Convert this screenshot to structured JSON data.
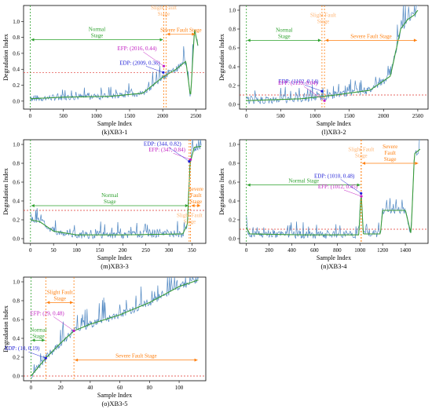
{
  "colors": {
    "axis": "#000000",
    "signal": "#4f87c2",
    "trend": "#3a9c3a",
    "normal": "#2ca02c",
    "fault": "#ff7f0e",
    "threshold": "#e0362e",
    "edp": "#1f1fd6",
    "efp": "#c21ec2"
  },
  "chart_data": [
    {
      "id": "k",
      "type": "line",
      "caption": "(k)XB3-1",
      "xlabel": "Sample Index",
      "ylabel": "Degradation Index",
      "xlim": [
        -100,
        2650
      ],
      "ylim": [
        -0.1,
        1.2
      ],
      "xticks": [
        0,
        500,
        1000,
        1500,
        2000,
        2500
      ],
      "yticks": [
        0.0,
        0.2,
        0.4,
        0.6,
        0.8,
        1.0
      ],
      "threshold": 0.36,
      "start_line": 0,
      "stage_lines": [
        2016,
        2050
      ],
      "stages": [
        {
          "label": [
            "Normal",
            "Stage"
          ],
          "from": 0,
          "to": 2016,
          "y": 0.77,
          "color": "normal"
        },
        {
          "label": [
            "Slight Fault",
            "Stage"
          ],
          "at": 2016,
          "y": 1.15,
          "color": "fault",
          "ghost": true
        },
        {
          "label": [
            "Severe Fault Stage"
          ],
          "from": 2050,
          "to": 2500,
          "y": 0.84,
          "color": "fault"
        }
      ],
      "annotations": [
        {
          "text": "EDP: (2009, 0.36)",
          "color": "edp",
          "x": 2009,
          "y": 0.36
        },
        {
          "text": "EFP: (2016, 0.44)",
          "color": "efp",
          "x": 2016,
          "y": 0.44
        }
      ],
      "signal_profile": [
        [
          0,
          0.03
        ],
        [
          500,
          0.05
        ],
        [
          1200,
          0.06
        ],
        [
          1700,
          0.1
        ],
        [
          2000,
          0.3
        ],
        [
          2200,
          0.4
        ],
        [
          2350,
          0.5
        ],
        [
          2420,
          0.05
        ],
        [
          2480,
          0.9
        ],
        [
          2530,
          0.7
        ]
      ]
    },
    {
      "id": "l",
      "type": "line",
      "caption": "(l)XB3-2",
      "xlabel": "Sample Index",
      "ylabel": "Degradation Index",
      "xlim": [
        -100,
        2650
      ],
      "ylim": [
        -0.05,
        1.05
      ],
      "xticks": [
        0,
        500,
        1000,
        1500,
        2000,
        2500
      ],
      "yticks": [
        0.0,
        0.2,
        0.4,
        0.6,
        0.8,
        1.0
      ],
      "threshold": 0.1,
      "start_line": 0,
      "stage_lines": [
        1102,
        1139
      ],
      "stages": [
        {
          "label": [
            "Normal",
            "Stage"
          ],
          "from": 0,
          "to": 1102,
          "y": 0.68,
          "color": "normal"
        },
        {
          "label": [
            "Slight Fault",
            "Stage"
          ],
          "at": 1120,
          "y": 0.93,
          "color": "fault",
          "ghost": true
        },
        {
          "label": [
            "Severe Fault Stage"
          ],
          "from": 1139,
          "to": 2500,
          "y": 0.68,
          "color": "fault"
        }
      ],
      "annotations": [
        {
          "text": "EDP: (1102, 0.14)",
          "color": "edp",
          "x": 1102,
          "y": 0.14
        },
        {
          "text": "EFP: (1139, 0.04)",
          "color": "efp",
          "x": 1139,
          "y": 0.04
        }
      ],
      "signal_profile": [
        [
          0,
          0.04
        ],
        [
          800,
          0.06
        ],
        [
          1300,
          0.1
        ],
        [
          1800,
          0.15
        ],
        [
          2100,
          0.3
        ],
        [
          2250,
          0.8
        ],
        [
          2350,
          0.9
        ],
        [
          2450,
          0.95
        ],
        [
          2500,
          1.0
        ]
      ]
    },
    {
      "id": "m",
      "type": "line",
      "caption": "(m)XB3-3",
      "xlabel": "Sample Index",
      "ylabel": "Degradation Index",
      "xlim": [
        -15,
        380
      ],
      "ylim": [
        -0.05,
        1.05
      ],
      "xticks": [
        0,
        50,
        100,
        150,
        200,
        250,
        300,
        350
      ],
      "yticks": [
        0.0,
        0.2,
        0.4,
        0.6,
        0.8,
        1.0
      ],
      "threshold": 0.3,
      "start_line": 0,
      "stage_lines": [
        344,
        347
      ],
      "stages": [
        {
          "label": [
            "Normal",
            "Stage"
          ],
          "from": 0,
          "to": 344,
          "y": 0.35,
          "color": "normal"
        },
        {
          "label": [
            "Slight Fault",
            "Stage"
          ],
          "at": 345,
          "y": 0.23,
          "color": "fault",
          "ghost": true
        },
        {
          "label": [
            "Severe",
            "Fault",
            "Stage"
          ],
          "from": 347,
          "to": 370,
          "y": 0.35,
          "color": "fault"
        }
      ],
      "annotations": [
        {
          "text": "EFP: (347, 0.84)",
          "color": "efp",
          "x": 347,
          "y": 0.84
        },
        {
          "text": "EDP: (344, 0.82)",
          "color": "edp",
          "x": 344,
          "y": 0.82
        }
      ],
      "signal_profile": [
        [
          0,
          0.2
        ],
        [
          20,
          0.18
        ],
        [
          50,
          0.08
        ],
        [
          100,
          0.04
        ],
        [
          200,
          0.04
        ],
        [
          330,
          0.05
        ],
        [
          340,
          0.15
        ],
        [
          346,
          0.8
        ],
        [
          355,
          0.97
        ],
        [
          370,
          0.98
        ]
      ]
    },
    {
      "id": "n",
      "type": "line",
      "caption": "(n)XB3-4",
      "xlabel": "Sample Index",
      "ylabel": "Degradation Index",
      "xlim": [
        -60,
        1600
      ],
      "ylim": [
        -0.05,
        1.05
      ],
      "xticks": [
        0,
        200,
        400,
        600,
        800,
        1000,
        1200,
        1400
      ],
      "yticks": [
        0.0,
        0.2,
        0.4,
        0.6,
        0.8,
        1.0
      ],
      "threshold": 0.1,
      "start_line": 0,
      "stage_lines": [
        1010,
        1012
      ],
      "stages": [
        {
          "label": [
            "Normal Stage"
          ],
          "from": 0,
          "to": 1010,
          "y": 0.57,
          "color": "normal"
        },
        {
          "label": [
            "Slight Fault",
            "Stage"
          ],
          "at": 1011,
          "y": 0.93,
          "color": "fault",
          "ghost": true
        },
        {
          "label": [
            "Severe",
            "Fault",
            "Stage"
          ],
          "from": 1012,
          "to": 1520,
          "y": 0.8,
          "color": "fault"
        }
      ],
      "annotations": [
        {
          "text": "EFP: (1012, 0.45)",
          "color": "efp",
          "x": 1012,
          "y": 0.45
        },
        {
          "text": "EDP: (1010, 0.48)",
          "color": "edp",
          "x": 1010,
          "y": 0.48
        }
      ],
      "signal_profile": [
        [
          0,
          0.12
        ],
        [
          30,
          0.05
        ],
        [
          500,
          0.04
        ],
        [
          990,
          0.04
        ],
        [
          1010,
          0.5
        ],
        [
          1030,
          0.05
        ],
        [
          1180,
          0.05
        ],
        [
          1200,
          0.3
        ],
        [
          1300,
          0.3
        ],
        [
          1400,
          0.3
        ],
        [
          1450,
          0.05
        ],
        [
          1480,
          0.9
        ],
        [
          1530,
          0.95
        ]
      ]
    },
    {
      "id": "o",
      "type": "line",
      "caption": "(o)XB3-5",
      "xlabel": "Sample Index",
      "ylabel": "Degradation Index",
      "xlim": [
        -5,
        118
      ],
      "ylim": [
        -0.05,
        1.05
      ],
      "xticks": [
        0,
        20,
        40,
        60,
        80,
        100
      ],
      "yticks": [
        0.0,
        0.2,
        0.4,
        0.6,
        0.8,
        1.0
      ],
      "threshold": 0.0,
      "start_line": 0,
      "stage_lines": [
        10,
        29
      ],
      "stages": [
        {
          "label": [
            "Normal",
            "Stage"
          ],
          "from": 0,
          "to": 10,
          "y": 0.38,
          "color": "normal"
        },
        {
          "label": [
            "Slight Fault",
            "Stage"
          ],
          "from": 10,
          "to": 29,
          "y": 0.78,
          "color": "fault"
        },
        {
          "label": [
            "Severe Fault Stage"
          ],
          "from": 29,
          "to": 113,
          "y": 0.17,
          "color": "fault"
        }
      ],
      "annotations": [
        {
          "text": "EDP: (10, 0.19)",
          "color": "edp",
          "x": 10,
          "y": 0.19
        },
        {
          "text": "EFP: (29, 0.48)",
          "color": "efp",
          "x": 29,
          "y": 0.48
        }
      ],
      "signal_profile": [
        [
          0,
          0.0
        ],
        [
          10,
          0.19
        ],
        [
          20,
          0.35
        ],
        [
          29,
          0.48
        ],
        [
          40,
          0.55
        ],
        [
          60,
          0.65
        ],
        [
          80,
          0.78
        ],
        [
          100,
          0.95
        ],
        [
          113,
          1.02
        ]
      ]
    }
  ]
}
